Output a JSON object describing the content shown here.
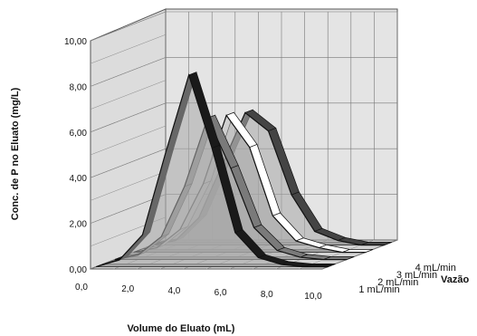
{
  "chart_data": {
    "type": "area",
    "subtype": "3d-ribbon",
    "xlabel": "Volume do Eluato  (mL)",
    "ylabel": "Conc. de P no Eluato  (mg/L)",
    "zlabel": "Vazão",
    "x_ticks": [
      "0,0",
      "2,0",
      "4,0",
      "6,0",
      "8,0",
      "10,0"
    ],
    "y_ticks": [
      "0,00",
      "2,00",
      "4,00",
      "6,00",
      "8,00",
      "10,00"
    ],
    "xlim": [
      0,
      10
    ],
    "ylim": [
      0,
      10
    ],
    "grid": true,
    "x": [
      0,
      1,
      2,
      3,
      4,
      5,
      6,
      7,
      8,
      9,
      10
    ],
    "series": [
      {
        "name": "1 mL/min",
        "values": [
          0.0,
          0.3,
          1.4,
          5.0,
          8.4,
          5.2,
          1.5,
          0.4,
          0.1,
          0.0,
          0.0
        ],
        "color": "#1a1a1a"
      },
      {
        "name": "2 mL/min",
        "values": [
          0.0,
          0.2,
          1.0,
          3.2,
          6.2,
          4.0,
          1.4,
          0.4,
          0.1,
          0.0,
          0.0
        ],
        "color": "#7a7a7a"
      },
      {
        "name": "3 mL/min",
        "values": [
          0.0,
          0.2,
          1.0,
          3.0,
          6.0,
          4.6,
          1.6,
          0.5,
          0.2,
          0.0,
          0.0
        ],
        "color": "#ffffff"
      },
      {
        "name": "4 mL/min",
        "values": [
          0.0,
          0.2,
          1.2,
          3.5,
          5.8,
          5.0,
          2.2,
          0.6,
          0.2,
          0.0,
          0.0
        ],
        "color": "#444444"
      }
    ]
  }
}
